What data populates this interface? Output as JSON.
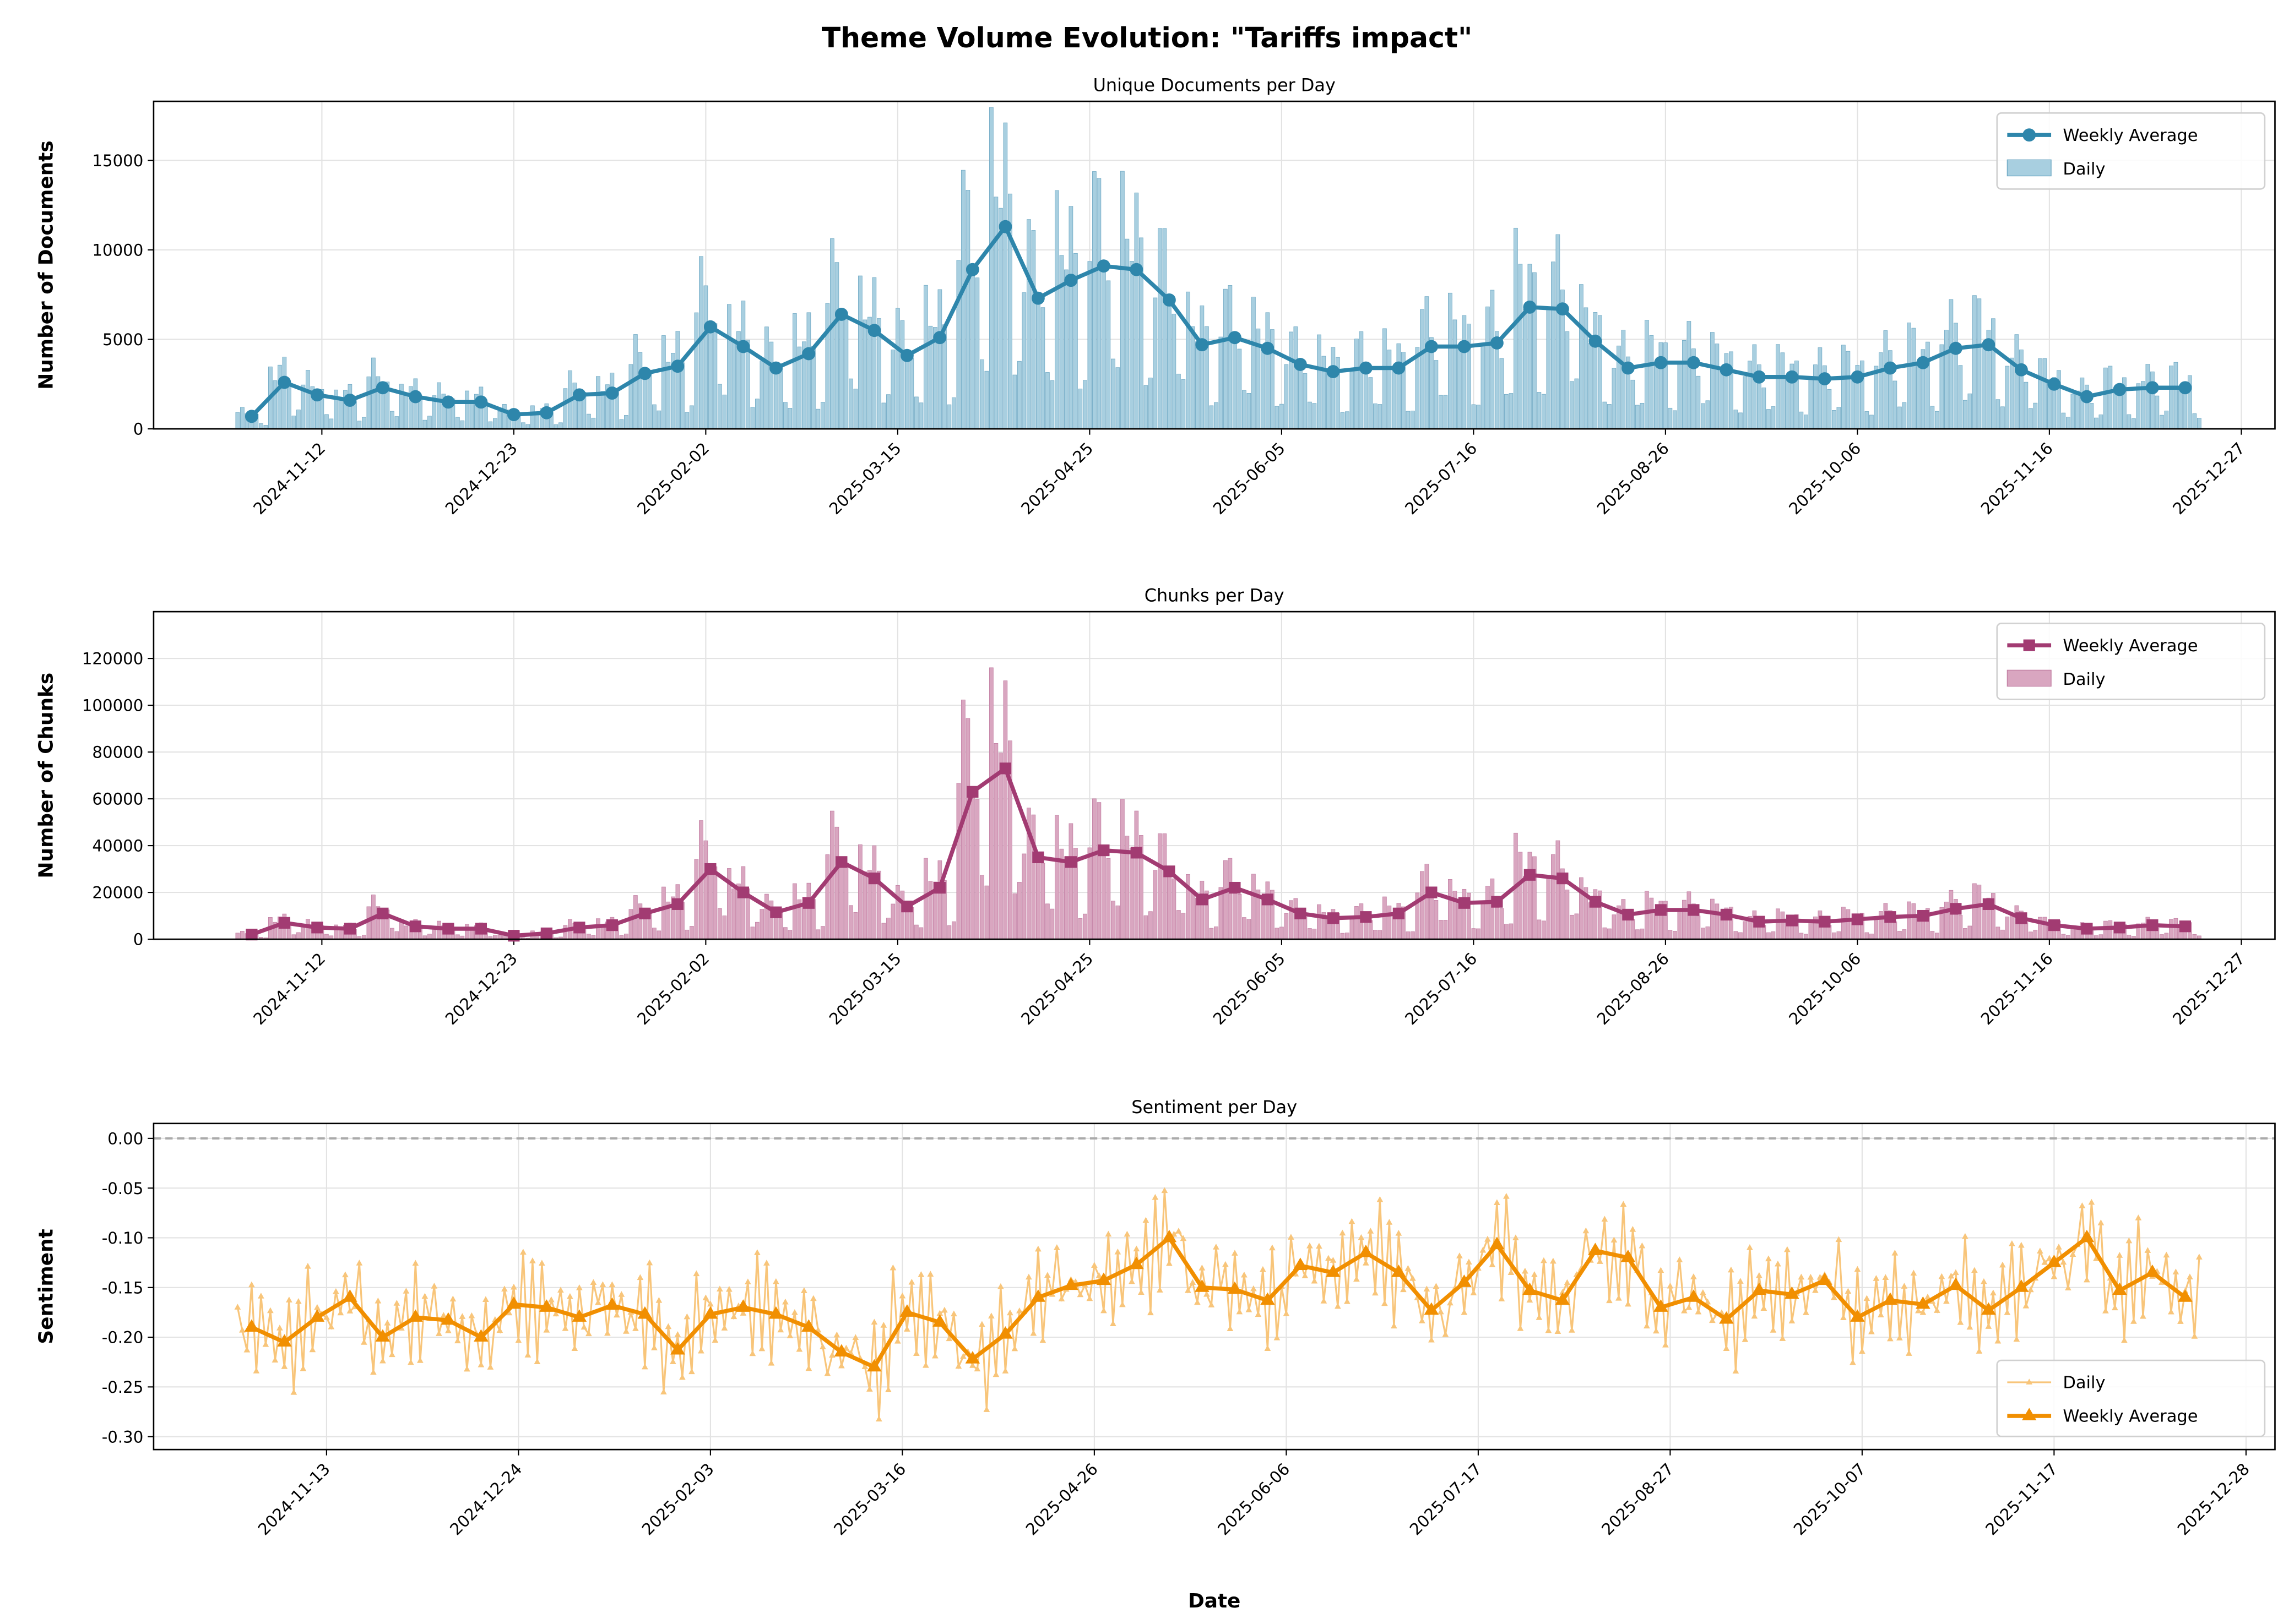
{
  "chart_data": {
    "type": "line",
    "title": "Theme Volume Evolution: \"Tariffs impact\"",
    "xlabel": "Date",
    "weeks": [
      "2024-10-28",
      "2024-11-04",
      "2024-11-11",
      "2024-11-18",
      "2024-11-25",
      "2024-12-02",
      "2024-12-09",
      "2024-12-16",
      "2024-12-23",
      "2024-12-30",
      "2025-01-06",
      "2025-01-13",
      "2025-01-20",
      "2025-01-27",
      "2025-02-03",
      "2025-02-10",
      "2025-02-17",
      "2025-02-24",
      "2025-03-03",
      "2025-03-10",
      "2025-03-17",
      "2025-03-24",
      "2025-03-31",
      "2025-04-07",
      "2025-04-14",
      "2025-04-21",
      "2025-04-28",
      "2025-05-05",
      "2025-05-12",
      "2025-05-19",
      "2025-05-26",
      "2025-06-02",
      "2025-06-09",
      "2025-06-16",
      "2025-06-23",
      "2025-06-30",
      "2025-07-07",
      "2025-07-14",
      "2025-07-21",
      "2025-07-28",
      "2025-08-04",
      "2025-08-11",
      "2025-08-18",
      "2025-08-25",
      "2025-09-01",
      "2025-09-08",
      "2025-09-15",
      "2025-09-22",
      "2025-09-29",
      "2025-10-06",
      "2025-10-13",
      "2025-10-20",
      "2025-10-27",
      "2025-11-03",
      "2025-11-10",
      "2025-11-17",
      "2025-11-24",
      "2025-12-01",
      "2025-12-08",
      "2025-12-15"
    ],
    "charts": [
      {
        "id": "documents",
        "type": "bar+line",
        "title": "Unique Documents per Day",
        "ylabel": "Number of Documents",
        "ylim": [
          0,
          18300
        ],
        "yticks": [
          0,
          5000,
          10000,
          15000
        ],
        "ytick_labels": [
          "0",
          "5000",
          "10000",
          "15000"
        ],
        "xticks": [
          "2024-11-12",
          "2024-12-23",
          "2025-02-02",
          "2025-03-15",
          "2025-04-25",
          "2025-06-05",
          "2025-07-16",
          "2025-08-26",
          "2025-10-06",
          "2025-11-16",
          "2025-12-27"
        ],
        "legend": {
          "placement": "top-right",
          "entries": [
            "Weekly Average",
            "Daily"
          ]
        },
        "grid": true,
        "colors": {
          "line": "#2e86ab",
          "bar": "#a8cfe0",
          "bar_edge": "#6fa9c4"
        },
        "marker": "circle",
        "weekly_average": [
          700,
          2600,
          1900,
          1600,
          2300,
          1800,
          1500,
          1500,
          800,
          900,
          1900,
          2000,
          3100,
          3500,
          5700,
          4600,
          3400,
          4200,
          6400,
          5500,
          4100,
          5100,
          8900,
          11300,
          7300,
          8300,
          9100,
          8900,
          7200,
          4700,
          5100,
          4500,
          3600,
          3200,
          3400,
          3400,
          4600,
          4600,
          4800,
          6800,
          6700,
          4900,
          3400,
          3700,
          3700,
          3300,
          2900,
          2900,
          2800,
          2900,
          3400,
          3700,
          4500,
          4700,
          3300,
          2500,
          1800,
          2200,
          2300,
          2300
        ]
      },
      {
        "id": "chunks",
        "type": "bar+line",
        "title": "Chunks per Day",
        "ylabel": "Number of Chunks",
        "ylim": [
          0,
          140000
        ],
        "yticks": [
          0,
          20000,
          40000,
          60000,
          80000,
          100000,
          120000
        ],
        "ytick_labels": [
          "0",
          "20000",
          "40000",
          "60000",
          "80000",
          "100000",
          "120000"
        ],
        "xticks": [
          "2024-11-12",
          "2024-12-23",
          "2025-02-02",
          "2025-03-15",
          "2025-04-25",
          "2025-06-05",
          "2025-07-16",
          "2025-08-26",
          "2025-10-06",
          "2025-11-16",
          "2025-12-27"
        ],
        "legend": {
          "placement": "top-right",
          "entries": [
            "Weekly Average",
            "Daily"
          ]
        },
        "grid": true,
        "colors": {
          "line": "#a23b72",
          "bar": "#d9a6c0",
          "bar_edge": "#c27fa3"
        },
        "marker": "square",
        "weekly_average": [
          2000,
          7000,
          5000,
          4500,
          11000,
          5500,
          4500,
          4500,
          1500,
          2500,
          5000,
          6000,
          11000,
          15000,
          30000,
          20000,
          11500,
          15500,
          33000,
          26000,
          14000,
          22000,
          63000,
          73000,
          35000,
          33000,
          38000,
          37000,
          29000,
          17000,
          22000,
          17000,
          11000,
          9000,
          9500,
          11000,
          20000,
          15500,
          16000,
          27500,
          26000,
          16000,
          10500,
          12500,
          12500,
          10500,
          7500,
          8000,
          7500,
          8500,
          9500,
          10000,
          13000,
          15000,
          9000,
          6000,
          4500,
          5000,
          6000,
          5500
        ]
      },
      {
        "id": "sentiment",
        "type": "line",
        "title": "Sentiment per Day",
        "ylabel": "Sentiment",
        "ylim": [
          -0.313,
          0.015
        ],
        "yticks": [
          0,
          -0.05,
          -0.1,
          -0.15,
          -0.2,
          -0.25,
          -0.3
        ],
        "ytick_labels": [
          "0.00",
          "-0.05",
          "-0.10",
          "-0.15",
          "-0.20",
          "-0.25",
          "-0.30"
        ],
        "xticks": [
          "2024-11-13",
          "2024-12-24",
          "2025-02-03",
          "2025-03-16",
          "2025-04-26",
          "2025-06-06",
          "2025-07-17",
          "2025-08-27",
          "2025-10-07",
          "2025-11-17",
          "2025-12-28"
        ],
        "legend": {
          "placement": "bottom-right",
          "entries": [
            "Daily",
            "Weekly Average"
          ]
        },
        "grid": true,
        "reference_line": 0,
        "colors": {
          "line": "#f18f01",
          "daily": "#f8c57a",
          "reference": "#aaaaaa"
        },
        "marker": "triangle",
        "weekly_average": [
          -0.19,
          -0.205,
          -0.18,
          -0.16,
          -0.2,
          -0.18,
          -0.183,
          -0.2,
          -0.167,
          -0.17,
          -0.18,
          -0.168,
          -0.177,
          -0.213,
          -0.177,
          -0.17,
          -0.177,
          -0.19,
          -0.215,
          -0.23,
          -0.175,
          -0.185,
          -0.222,
          -0.197,
          -0.16,
          -0.148,
          -0.143,
          -0.127,
          -0.1,
          -0.15,
          -0.152,
          -0.163,
          -0.128,
          -0.135,
          -0.115,
          -0.135,
          -0.173,
          -0.145,
          -0.107,
          -0.153,
          -0.163,
          -0.113,
          -0.12,
          -0.17,
          -0.16,
          -0.182,
          -0.153,
          -0.157,
          -0.143,
          -0.18,
          -0.163,
          -0.167,
          -0.148,
          -0.173,
          -0.15,
          -0.125,
          -0.1,
          -0.153,
          -0.135,
          -0.16
        ]
      }
    ]
  }
}
